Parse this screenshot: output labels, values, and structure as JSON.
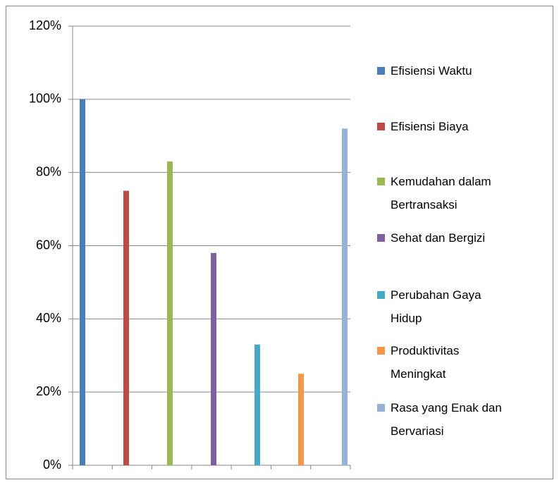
{
  "chart_data": {
    "type": "bar",
    "categories": [
      null
    ],
    "series": [
      {
        "name": "Efisiensi Waktu",
        "color": "#4a7ebb",
        "values": [
          100
        ]
      },
      {
        "name": "Efisiensi Biaya",
        "color": "#be4b48",
        "values": [
          75
        ]
      },
      {
        "name": "Kemudahan dalam Bertransaksi",
        "color": "#98b954",
        "values": [
          83
        ]
      },
      {
        "name": "Sehat dan Bergizi",
        "color": "#7d60a0",
        "values": [
          58
        ]
      },
      {
        "name": "Perubahan Gaya Hidup",
        "color": "#46aac5",
        "values": [
          33
        ]
      },
      {
        "name": "Produktivitas Meningkat",
        "color": "#f79646",
        "values": [
          25
        ]
      },
      {
        "name": "Rasa yang Enak dan Bervariasi",
        "color": "#95b3d7",
        "values": [
          92
        ]
      }
    ],
    "ylim": [
      0,
      120
    ],
    "yticks": [
      {
        "value": 0,
        "label": "0%"
      },
      {
        "value": 20,
        "label": "20%"
      },
      {
        "value": 40,
        "label": "40%"
      },
      {
        "value": 60,
        "label": "60%"
      },
      {
        "value": 80,
        "label": "80%"
      },
      {
        "value": 100,
        "label": "100%"
      },
      {
        "value": 120,
        "label": "120%"
      }
    ],
    "grid": true,
    "legend": "right"
  }
}
